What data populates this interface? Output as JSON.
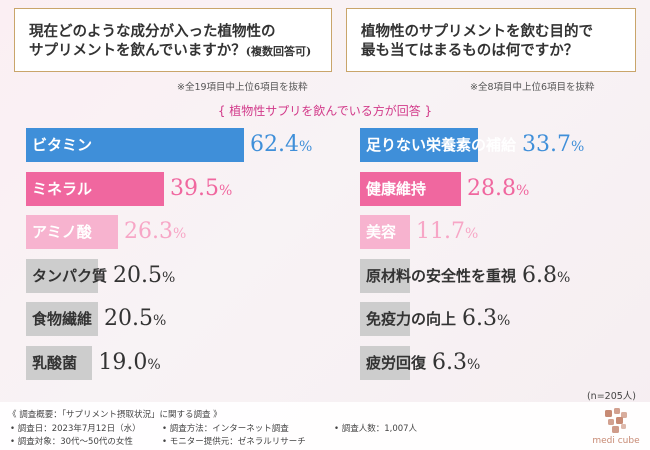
{
  "left_question": {
    "line1": "現在どのような成分が入った植物性の",
    "line2_main": "サプリメントを飲んでいますか？",
    "line2_small": "(複数回答可)",
    "note": "※全19項目中上位6項目を抜粋"
  },
  "right_question": {
    "line1": "植物性のサプリメントを飲む目的で",
    "line2": "最も当てはまるものは何ですか？",
    "note": "※全8項目中上位6項目を抜粋"
  },
  "subtitle": "{ 植物性サプリを飲んでいる方が回答 }",
  "n_count": "(n=205人)",
  "colors": {
    "blue": "#3f8fd9",
    "pink": "#f0679f",
    "light_pink": "#f7b3cf",
    "gray": "#cdcdcd",
    "gold_border": "#c9a56a"
  },
  "chart_data": [
    {
      "type": "bar",
      "orientation": "horizontal",
      "categories": [
        "ビタミン",
        "ミネラル",
        "アミノ酸",
        "タンパク質",
        "食物繊維",
        "乳酸菌"
      ],
      "values": [
        62.4,
        39.5,
        26.3,
        20.5,
        20.5,
        19.0
      ],
      "value_labels": [
        "62.4",
        "39.5",
        "26.3",
        "20.5",
        "20.5",
        "19.0"
      ],
      "unit": "%",
      "styles": [
        "blue",
        "pink",
        "lpink",
        "gray",
        "gray",
        "gray"
      ]
    },
    {
      "type": "bar",
      "orientation": "horizontal",
      "categories": [
        "足りない栄養素の補給",
        "健康維持",
        "美容",
        "原材料の安全性を重視",
        "免疫力の向上",
        "疲労回復"
      ],
      "values": [
        33.7,
        28.8,
        11.7,
        6.8,
        6.3,
        6.3
      ],
      "value_labels": [
        "33.7",
        "28.8",
        "11.7",
        "6.8",
        "6.3",
        "6.3"
      ],
      "unit": "%",
      "styles": [
        "blue",
        "pink",
        "lpink",
        "gray",
        "gray",
        "gray"
      ]
    }
  ],
  "footer": {
    "overview": "《 調査概要：「サプリメント摂取状況」に関する調査 》",
    "date": "• 調査日：2023年7月12日（水）",
    "target": "• 調査対象：30代～50代の女性",
    "method": "• 調査方法：インターネット調査",
    "provider": "• モニター提供元：ゼネラルリサーチ",
    "respondents": "• 調査人数：1,007人"
  },
  "logo": {
    "text": "medi cube",
    "icon": "medi-cube-logo-icon"
  }
}
